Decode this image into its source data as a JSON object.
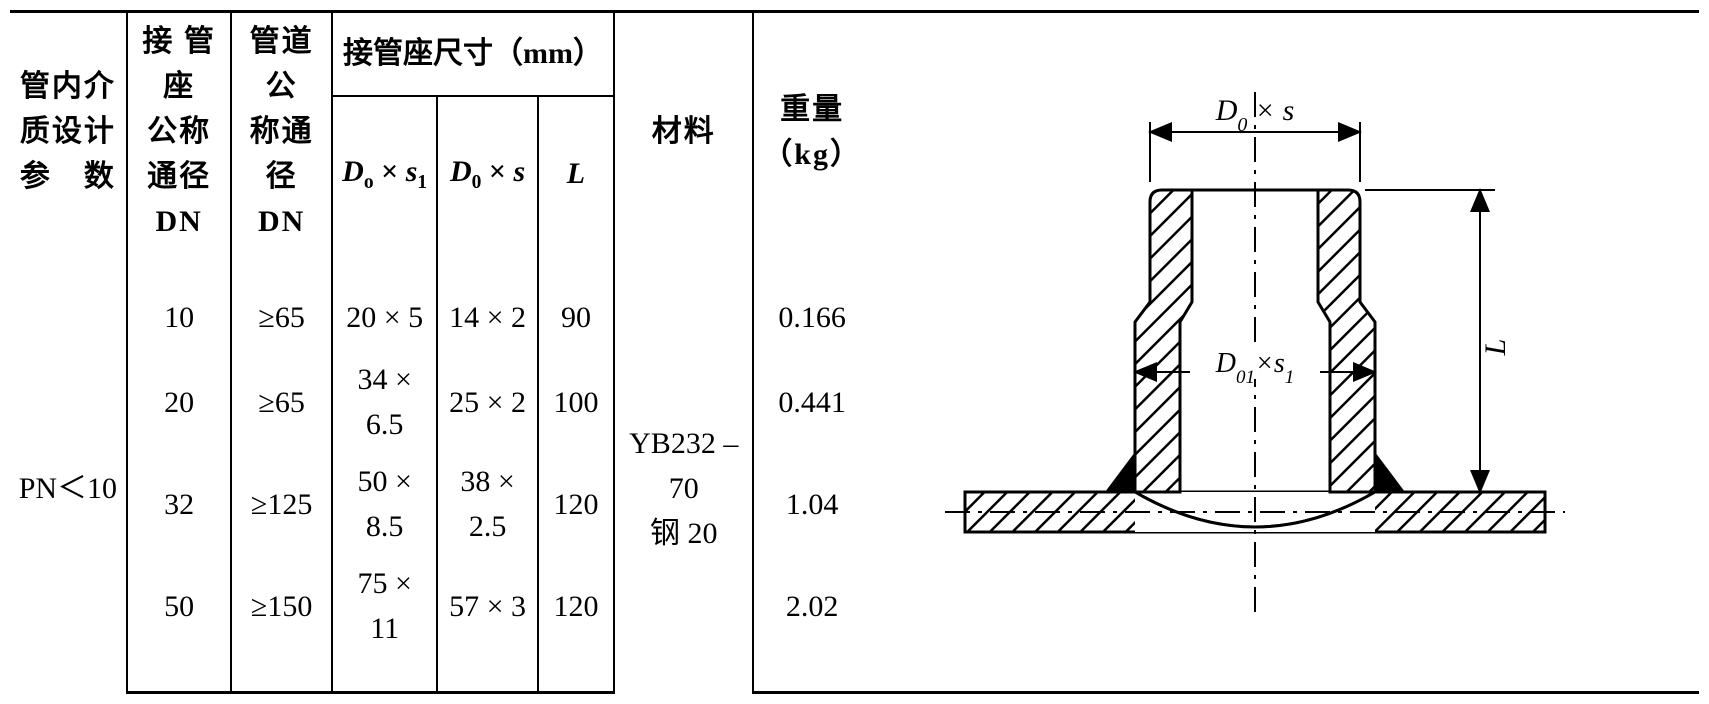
{
  "headers": {
    "param": "管内介<br>质设计<br>参　数",
    "nozzle_dn": "接 管 座<br>公称通径<br>DN",
    "pipe_dn": "管道公<br>称通径<br>DN",
    "dim_group": "接管座尺寸（mm）",
    "d_o_s1_html": "<span class='it'>D</span><sub>o</sub> × <span class='it'>s</span><sub>1</sub>",
    "d0_s_html": "<span class='it'>D</span><sub>0</sub> × <span class='it'>s</span>",
    "L_html": "<span class='it'>L</span>",
    "material": "材料",
    "weight": "重量<br>（kg）"
  },
  "body": {
    "param": "PN＜10",
    "material_l1": "YB232 – 70",
    "material_l2": "钢 20"
  },
  "rows": [
    {
      "dn1": "10",
      "dn2": "≥65",
      "d1": "20 × 5",
      "d2": "14 × 2",
      "L": "90",
      "wt": "0.166"
    },
    {
      "dn1": "20",
      "dn2": "≥65",
      "d1": "34 × 6.5",
      "d2": "25 × 2",
      "L": "100",
      "wt": "0.441"
    },
    {
      "dn1": "32",
      "dn2": "≥125",
      "d1": "50 × 8.5",
      "d2": "38 × 2.5",
      "L": "120",
      "wt": "1.04"
    },
    {
      "dn1": "50",
      "dn2": "≥150",
      "d1": "75 × 11",
      "d2": "57 × 3",
      "L": "120",
      "wt": "2.02"
    }
  ],
  "diagram": {
    "label_top_html": "D<tspan baseline-shift='sub' font-size='20'>0</tspan> × s",
    "label_mid_html": "D<tspan baseline-shift='sub' font-size='20'>01</tspan>×s<tspan baseline-shift='sub' font-size='20'>1</tspan>",
    "label_L": "L",
    "colors": {
      "stroke": "#000000",
      "hatch": "#000000",
      "fill_bg": "#ffffff"
    },
    "stroke_width": 3
  }
}
